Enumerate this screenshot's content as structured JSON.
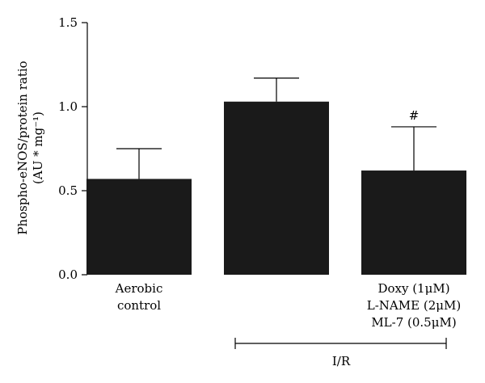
{
  "chart_data": {
    "type": "bar",
    "categories": [
      [
        "Aerobic",
        "control"
      ],
      [],
      [
        "Doxy (1μM)",
        "L-NAME (2μM)",
        "ML-7 (0.5μM)"
      ]
    ],
    "values": [
      0.57,
      1.03,
      0.62
    ],
    "errors": [
      0.18,
      0.14,
      0.26
    ],
    "annotations": [
      "",
      "",
      "#"
    ],
    "ylabel_line1": "Phospho-eNOS/protein ratio",
    "ylabel_line2": "(AU * mg⁻¹)",
    "ylim": [
      0.0,
      1.5
    ],
    "yticks": [
      "0.0",
      "0.5",
      "1.0",
      "1.5"
    ],
    "group_label": "I/R",
    "bar_color": "#1a1a1a"
  }
}
